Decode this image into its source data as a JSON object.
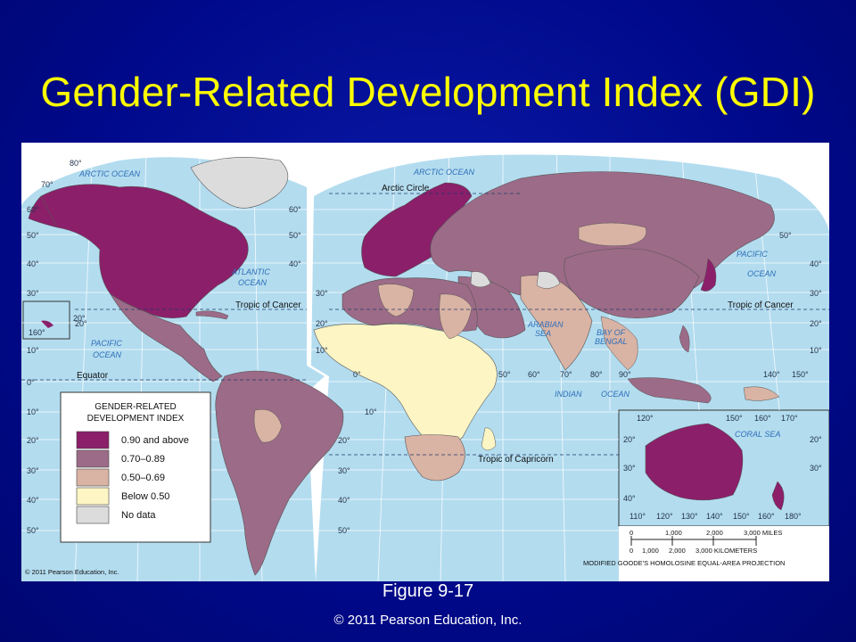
{
  "slide": {
    "title": "Gender-Related Development Index (GDI)",
    "figure_label": "Figure 9-17",
    "copyright": "© 2011 Pearson Education, Inc."
  },
  "map": {
    "inner_credit": "© 2011 Pearson Education, Inc.",
    "projection_note": "MODIFIED GOODE'S HOMOLOSINE EQUAL-AREA PROJECTION",
    "legend": {
      "title_line1": "GENDER-RELATED",
      "title_line2": "DEVELOPMENT INDEX",
      "items": [
        {
          "label": "0.90 and above",
          "color": "#8b1f6a"
        },
        {
          "label": "0.70–0.89",
          "color": "#9c6b87"
        },
        {
          "label": "0.50–0.69",
          "color": "#d9b3a4"
        },
        {
          "label": "Below 0.50",
          "color": "#fdf5c4"
        },
        {
          "label": "No data",
          "color": "#dcdcdc"
        }
      ]
    },
    "oceans": {
      "arctic_left": "ARCTIC OCEAN",
      "arctic_right": "ARCTIC OCEAN",
      "atlantic_1": "ATLANTIC",
      "atlantic_2": "OCEAN",
      "pacific_left_1": "PACIFIC",
      "pacific_left_2": "OCEAN",
      "pacific_right_1": "PACIFIC",
      "pacific_right_2": "OCEAN",
      "indian_1": "INDIAN",
      "indian_2": "OCEAN",
      "arabian_1": "ARABIAN",
      "arabian_2": "SEA",
      "bengal_1": "BAY OF",
      "bengal_2": "BENGAL",
      "coral_sea": "CORAL SEA"
    },
    "lines": {
      "arctic_circle": "Arctic Circle",
      "tropic_cancer_left": "Tropic of Cancer",
      "tropic_cancer_right": "Tropic of Cancer",
      "equator": "Equator",
      "tropic_capricorn": "Tropic of Capricorn"
    },
    "scale": {
      "miles_ticks": [
        "0",
        "1,000",
        "2,000",
        "3,000 MILES"
      ],
      "km_ticks": [
        "0",
        "1,000",
        "2,000",
        "3,000 KILOMETERS"
      ]
    },
    "latitude_labels_left": [
      "80°",
      "70°",
      "60°",
      "50°",
      "40°",
      "30°",
      "20°",
      "10°",
      "0°",
      "10°",
      "20°",
      "30°",
      "40°",
      "50°"
    ],
    "latitude_labels_mid": [
      "60°",
      "50°",
      "40°",
      "30°",
      "20°",
      "10°",
      "10°",
      "20°",
      "30°",
      "40°",
      "50°"
    ],
    "latitude_labels_right": [
      "50°",
      "40°",
      "30°",
      "20°",
      "10°"
    ],
    "longitude_labels_mid": [
      "0°",
      "50°",
      "60°",
      "70°",
      "80°",
      "90°",
      "140°",
      "150°"
    ],
    "inset_labels": {
      "top": [
        "120°",
        "150°",
        "160°",
        "170°"
      ],
      "bottom": [
        "110°",
        "120°",
        "130°",
        "140°",
        "150°",
        "160°",
        "180°"
      ],
      "left": [
        "20°",
        "30°",
        "40°"
      ],
      "right": [
        "20°",
        "30°"
      ],
      "hawaii_lat": "20°",
      "hawaii_lon": "160°"
    }
  }
}
